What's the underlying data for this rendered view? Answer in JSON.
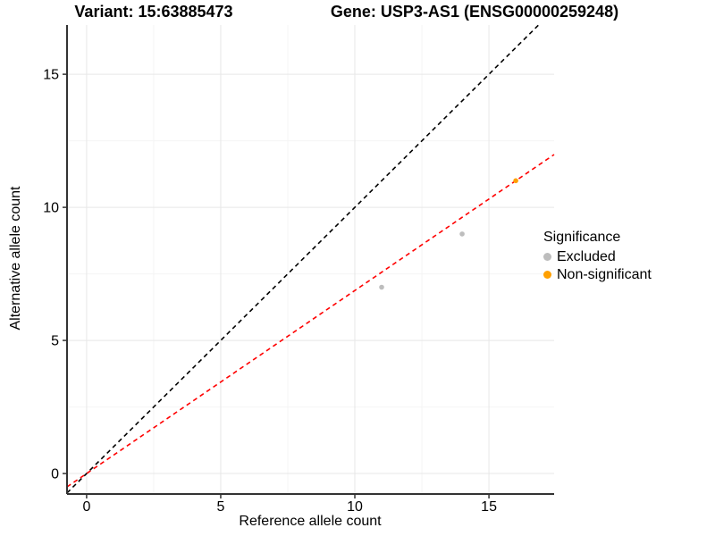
{
  "titles": {
    "variant": "Variant: 15:63885473",
    "gene": "Gene: USP3-AS1 (ENSG00000259248)"
  },
  "axes": {
    "x_label": "Reference allele count",
    "y_label": "Alternative allele count"
  },
  "legend": {
    "title": "Significance",
    "items": [
      {
        "label": "Excluded",
        "color": "#bdbdbd"
      },
      {
        "label": "Non-significant",
        "color": "#ffa000"
      }
    ]
  },
  "chart_data": {
    "type": "scatter",
    "title_left": "Variant: 15:63885473",
    "title_right": "Gene: USP3-AS1 (ENSG00000259248)",
    "xlabel": "Reference allele count",
    "ylabel": "Alternative allele count",
    "xlim": [
      -0.73,
      17.43
    ],
    "ylim": [
      -0.77,
      16.85
    ],
    "x_ticks": [
      0,
      5,
      10,
      15
    ],
    "y_ticks": [
      0,
      5,
      10,
      15
    ],
    "x_minor_ticks": [
      2.5,
      7.5,
      12.5
    ],
    "y_minor_ticks": [
      2.5,
      7.5,
      12.5
    ],
    "grid": "major+minor",
    "legend_position": "right",
    "series": [
      {
        "name": "Excluded",
        "color": "#bdbdbd",
        "points": [
          {
            "x": 11,
            "y": 7
          },
          {
            "x": 14,
            "y": 9
          }
        ]
      },
      {
        "name": "Non-significant",
        "color": "#ffa000",
        "points": [
          {
            "x": 16,
            "y": 11
          }
        ]
      }
    ],
    "lines": [
      {
        "name": "identity",
        "slope": 1,
        "intercept": 0,
        "color": "#000000",
        "style": "dashed"
      },
      {
        "name": "fit",
        "slope": 0.6875,
        "intercept": 0,
        "color": "#ff0000",
        "style": "dashed"
      }
    ],
    "colors": {
      "grid_major": "#e7e7e7",
      "grid_minor": "#f4f4f4",
      "axis_line": "#333333",
      "tick_label": "#000000"
    }
  }
}
